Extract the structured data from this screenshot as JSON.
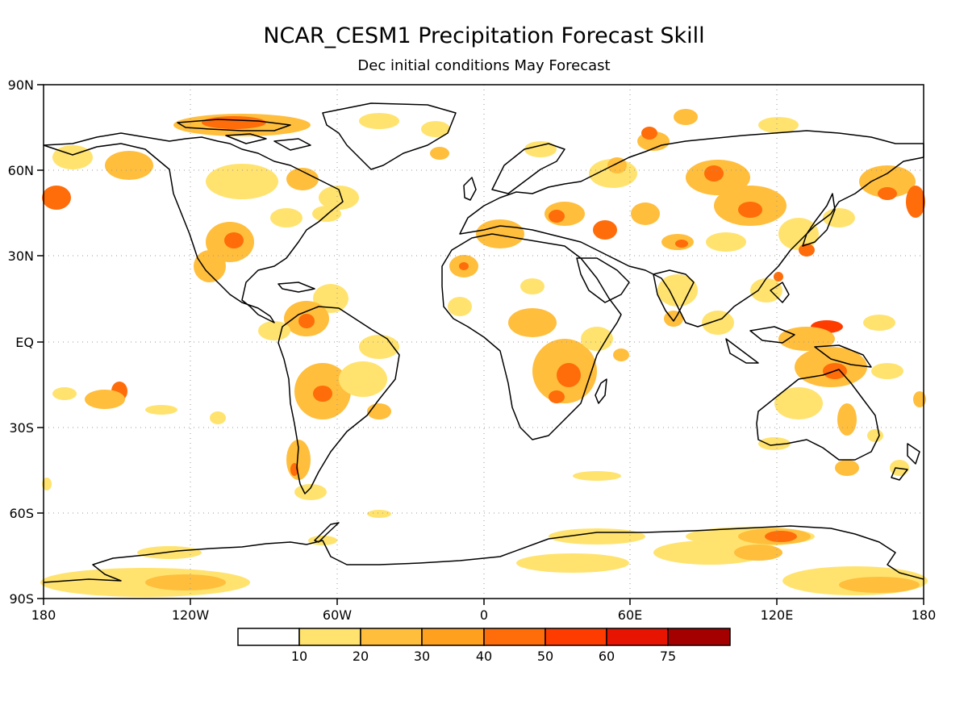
{
  "header": {
    "title": "NCAR_CESM1 Precipitation Forecast Skill",
    "subtitle": "Dec initial conditions   May Forecast"
  },
  "axes": {
    "x_ticks": [
      "180",
      "120W",
      "60W",
      "0",
      "60E",
      "120E",
      "180"
    ],
    "y_ticks": [
      "90N",
      "60N",
      "30N",
      "EQ",
      "30S",
      "60S",
      "90S"
    ]
  },
  "colors": {
    "background": "#ffffff",
    "coastline": "#000000",
    "grid": "#9a9a9a"
  },
  "colorbar": {
    "labels": [
      "10",
      "20",
      "30",
      "40",
      "50",
      "60",
      "75"
    ],
    "colors": [
      "#ffffff",
      "#ffe36e",
      "#ffbe3c",
      "#ffa01e",
      "#ff6c0a",
      "#ff3c00",
      "#e61400",
      "#a50000"
    ]
  }
}
